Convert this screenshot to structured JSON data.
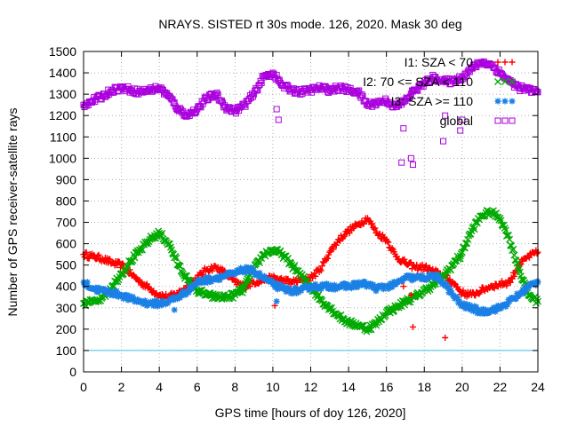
{
  "chart_data": {
    "type": "scatter",
    "title": "NRAYS. SISTED rt 30s mode. 126, 2020. Mask 30 deg",
    "xlabel": "GPS time [hours of doy 126, 2020]",
    "ylabel": "Number of GPS receiver-satellite rays",
    "xlim": [
      0,
      24
    ],
    "ylim": [
      0,
      1500
    ],
    "x_ticks": [
      "0",
      "2",
      "4",
      "6",
      "8",
      "10",
      "12",
      "14",
      "16",
      "18",
      "20",
      "22",
      "24"
    ],
    "y_ticks": [
      "0",
      "100",
      "200",
      "300",
      "400",
      "500",
      "600",
      "700",
      "800",
      "900",
      "1000",
      "1100",
      "1200",
      "1300",
      "1400",
      "1500"
    ],
    "grid": true,
    "legend_position": "top-right",
    "reference_line": {
      "y": 100,
      "color": "#40c0e0"
    },
    "series": [
      {
        "name": "I1: SZA < 70",
        "color": "#ff0000",
        "marker": "plus",
        "x": [
          0,
          0.5,
          1,
          1.5,
          2,
          2.5,
          3,
          3.5,
          4,
          4.5,
          5,
          5.5,
          6,
          6.5,
          7,
          7.5,
          8,
          8.5,
          9,
          9.5,
          10,
          10.5,
          11,
          11.5,
          12,
          12.5,
          13,
          13.5,
          14,
          14.5,
          15,
          15.5,
          16,
          16.5,
          17,
          17.5,
          18,
          18.5,
          19,
          19.5,
          20,
          20.5,
          21,
          21.5,
          22,
          22.5,
          23,
          23.5,
          24
        ],
        "values": [
          550,
          540,
          530,
          510,
          500,
          460,
          420,
          390,
          360,
          350,
          370,
          400,
          440,
          480,
          490,
          460,
          420,
          400,
          420,
          430,
          440,
          430,
          420,
          430,
          440,
          480,
          560,
          620,
          660,
          690,
          720,
          650,
          620,
          540,
          510,
          490,
          490,
          470,
          450,
          420,
          370,
          360,
          380,
          400,
          410,
          420,
          500,
          540,
          560
        ]
      },
      {
        "name": "I2: 70 <= SZA < 110",
        "color": "#00aa00",
        "marker": "cross",
        "x": [
          0,
          0.5,
          1,
          1.5,
          2,
          2.5,
          3,
          3.5,
          4,
          4.5,
          5,
          5.5,
          6,
          6.5,
          7,
          7.5,
          8,
          8.5,
          9,
          9.5,
          10,
          10.5,
          11,
          11.5,
          12,
          12.5,
          13,
          13.5,
          14,
          14.5,
          15,
          15.5,
          16,
          16.5,
          17,
          17.5,
          18,
          18.5,
          19,
          19.5,
          20,
          20.5,
          21,
          21.5,
          22,
          22.5,
          23,
          23.5,
          24
        ],
        "values": [
          320,
          330,
          350,
          400,
          460,
          520,
          570,
          620,
          650,
          600,
          500,
          430,
          380,
          360,
          350,
          350,
          360,
          400,
          480,
          550,
          570,
          550,
          500,
          450,
          400,
          340,
          300,
          260,
          230,
          220,
          200,
          230,
          280,
          300,
          330,
          350,
          380,
          410,
          450,
          500,
          560,
          660,
          730,
          750,
          720,
          620,
          480,
          360,
          330
        ]
      },
      {
        "name": "I3: SZA >= 110",
        "color": "#1a80e6",
        "marker": "star",
        "x": [
          0,
          0.5,
          1,
          1.5,
          2,
          2.5,
          3,
          3.5,
          4,
          4.5,
          5,
          5.5,
          6,
          6.5,
          7,
          7.5,
          8,
          8.5,
          9,
          9.5,
          10,
          10.5,
          11,
          11.5,
          12,
          12.5,
          13,
          13.5,
          14,
          14.5,
          15,
          15.5,
          16,
          16.5,
          17,
          17.5,
          18,
          18.5,
          19,
          19.5,
          20,
          20.5,
          21,
          21.5,
          22,
          22.5,
          23,
          23.5,
          24
        ],
        "values": [
          420,
          390,
          380,
          370,
          360,
          340,
          330,
          320,
          320,
          330,
          350,
          380,
          420,
          430,
          440,
          450,
          460,
          480,
          470,
          440,
          410,
          390,
          380,
          380,
          400,
          400,
          400,
          400,
          400,
          410,
          410,
          390,
          400,
          410,
          440,
          440,
          440,
          450,
          420,
          360,
          310,
          300,
          280,
          290,
          300,
          330,
          360,
          400,
          420
        ]
      },
      {
        "name": "global",
        "color": "#aa00dd",
        "marker": "square",
        "x": [
          0,
          0.5,
          1,
          1.5,
          2,
          2.5,
          3,
          3.5,
          4,
          4.5,
          5,
          5.5,
          6,
          6.5,
          7,
          7.5,
          8,
          8.5,
          9,
          9.5,
          10,
          10.5,
          11,
          11.5,
          12,
          12.5,
          13,
          13.5,
          14,
          14.5,
          15,
          15.5,
          16,
          16.5,
          17,
          17.5,
          18,
          18.5,
          19,
          19.5,
          20,
          20.5,
          21,
          21.5,
          22,
          22.5,
          23,
          23.5,
          24
        ],
        "values": [
          1250,
          1270,
          1290,
          1320,
          1330,
          1320,
          1310,
          1320,
          1330,
          1290,
          1230,
          1200,
          1230,
          1280,
          1300,
          1240,
          1220,
          1250,
          1300,
          1380,
          1400,
          1340,
          1320,
          1310,
          1320,
          1330,
          1320,
          1330,
          1320,
          1310,
          1250,
          1260,
          1270,
          1240,
          1270,
          1320,
          1350,
          1380,
          1360,
          1360,
          1380,
          1420,
          1450,
          1440,
          1400,
          1360,
          1330,
          1320,
          1310
        ]
      }
    ],
    "outliers": [
      {
        "series": "I1: SZA < 70",
        "x": [
          10.1,
          16.9,
          17.3,
          17.4,
          19.1
        ],
        "values": [
          310,
          400,
          360,
          210,
          160
        ]
      },
      {
        "series": "I2: 70 <= SZA < 110",
        "x": [
          6.1,
          8.4,
          12.4,
          19.9
        ],
        "values": [
          380,
          370,
          360,
          530
        ]
      },
      {
        "series": "I3: SZA >= 110",
        "x": [
          4.8,
          10.2,
          20.1
        ],
        "values": [
          290,
          330,
          310
        ]
      },
      {
        "series": "global",
        "x": [
          10.2,
          10.3,
          16.8,
          16.9,
          17.3,
          17.4,
          19.0,
          19.1,
          19.9,
          20.0
        ],
        "values": [
          1230,
          1180,
          980,
          1140,
          1000,
          970,
          1080,
          1200,
          1130,
          1180
        ]
      }
    ]
  }
}
